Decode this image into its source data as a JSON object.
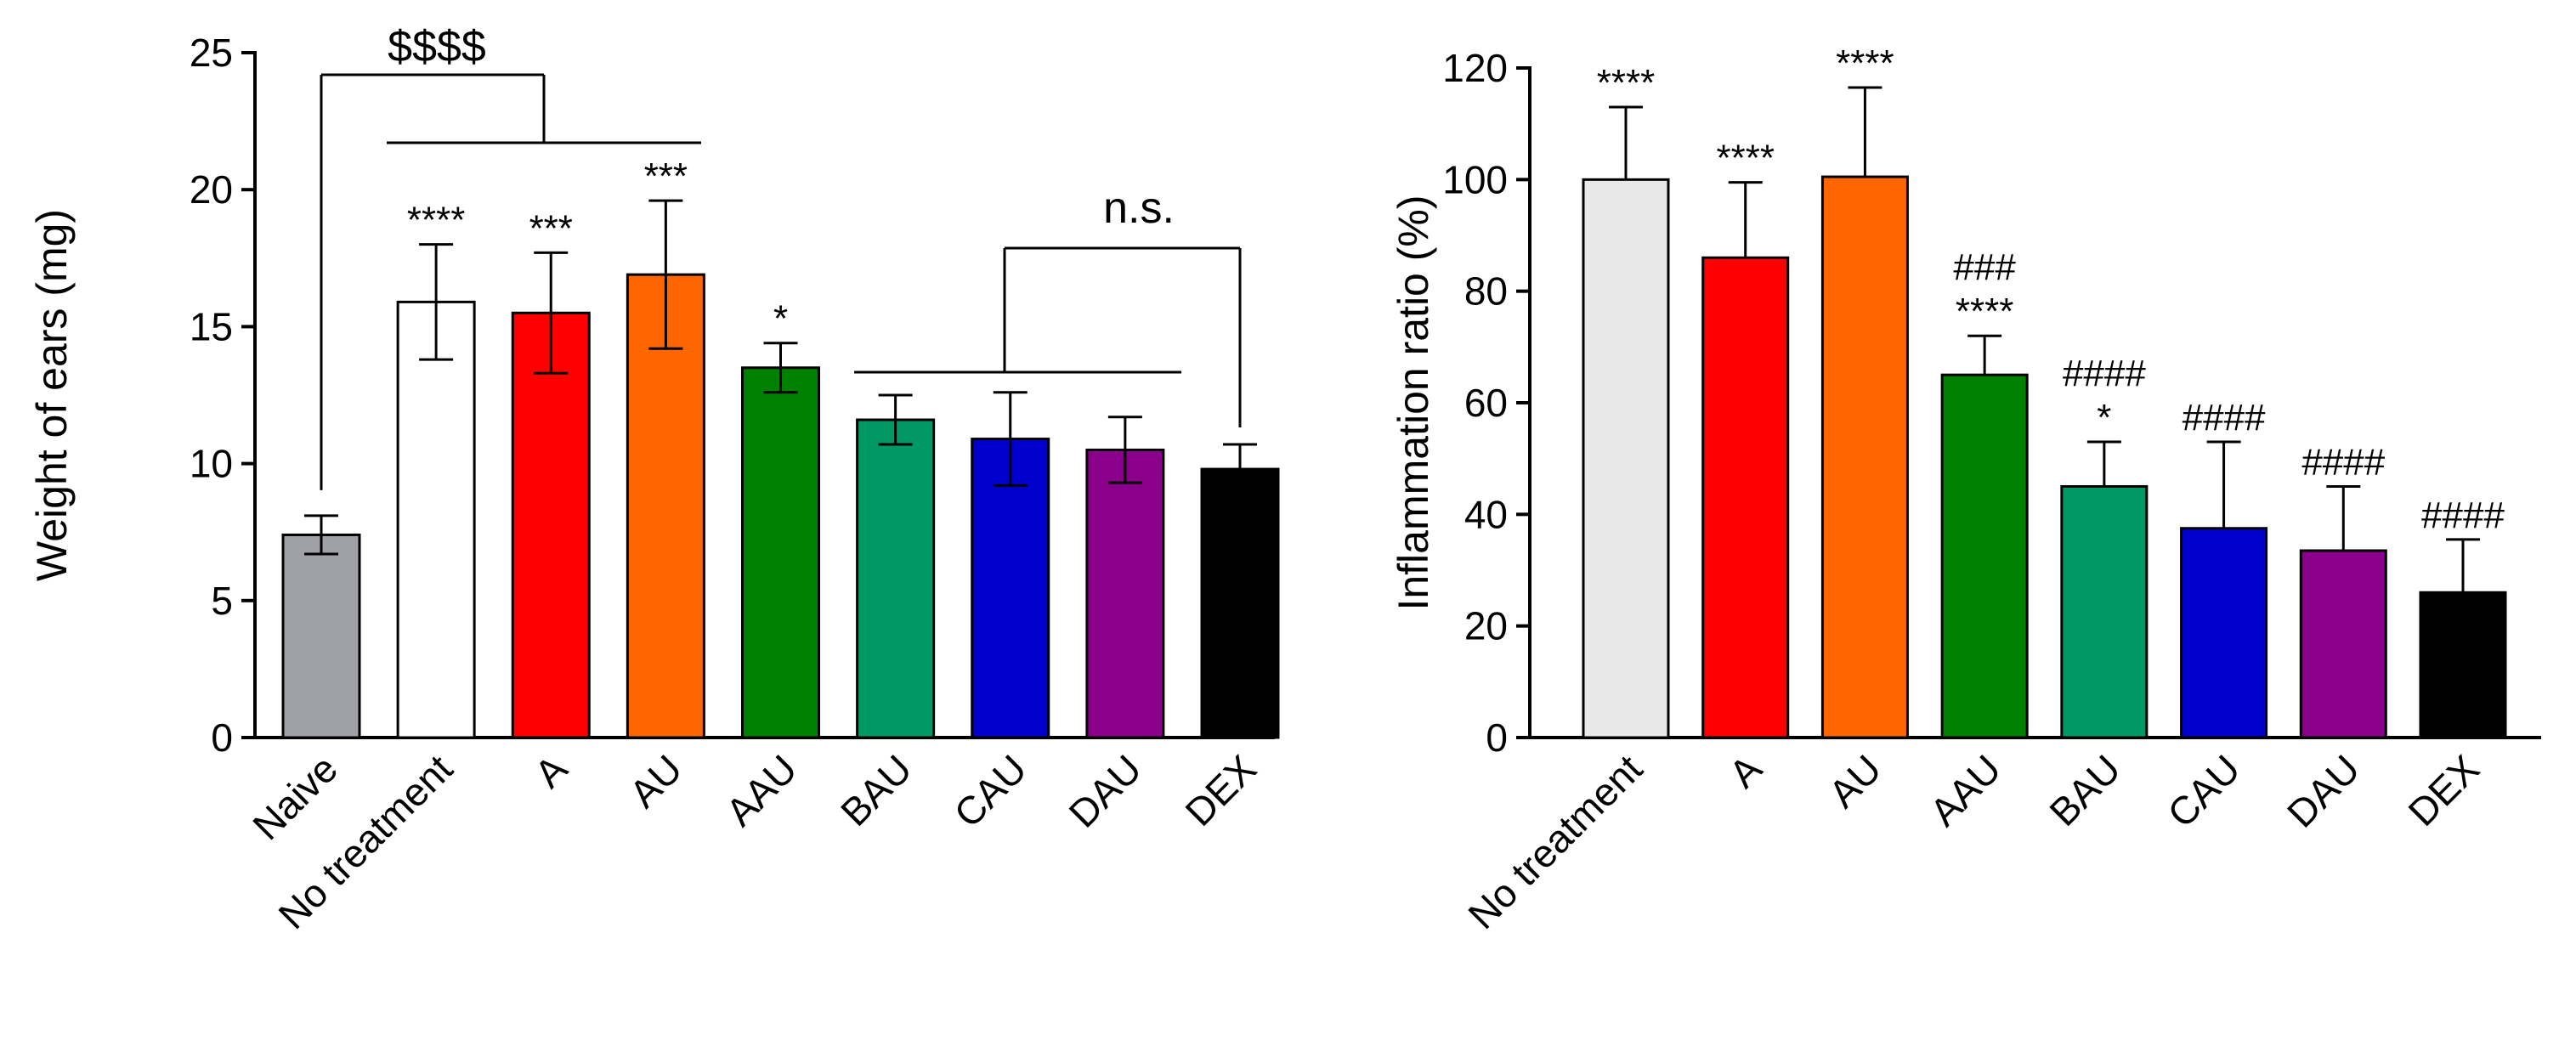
{
  "chart_data": [
    {
      "type": "bar",
      "ylabel": "Weight of ears (mg)",
      "ylim": [
        0,
        25
      ],
      "yticks": [
        0,
        5,
        10,
        15,
        20,
        25
      ],
      "categories": [
        "Naive",
        "No treatment",
        "A",
        "AU",
        "AAU",
        "BAU",
        "CAU",
        "DAU",
        "DEX"
      ],
      "values": [
        7.4,
        15.9,
        15.5,
        16.9,
        13.5,
        11.6,
        10.9,
        10.5,
        9.8
      ],
      "errors": [
        0.7,
        2.1,
        2.2,
        2.7,
        0.9,
        0.9,
        1.7,
        1.2,
        0.9
      ],
      "colors": [
        "#a0a0a8",
        "#ffffff",
        "#ff0000",
        "#ff6600",
        "#008000",
        "#009966",
        "#0000cc",
        "#8b008b",
        "#000000"
      ],
      "annotations": [
        "",
        "****",
        "***",
        "***",
        "*",
        "",
        "",
        "",
        ""
      ],
      "brackets": {
        "naive_vs_treated": "$$$$",
        "treated_vs_dex": "n.s."
      }
    },
    {
      "type": "bar",
      "ylabel": "Inflammation ratio (%)",
      "ylim": [
        0,
        120
      ],
      "yticks": [
        0,
        20,
        40,
        60,
        80,
        100,
        120
      ],
      "categories": [
        "No treatment",
        "A",
        "AU",
        "AAU",
        "BAU",
        "CAU",
        "DAU",
        "DEX"
      ],
      "values": [
        100,
        86,
        100.5,
        65,
        45,
        37.5,
        33.5,
        26
      ],
      "errors": [
        13,
        13.5,
        16,
        7,
        8,
        15.5,
        11.5,
        9.5
      ],
      "colors": [
        "#e8e8e8",
        "#ff0000",
        "#ff6600",
        "#008000",
        "#009966",
        "#0000cc",
        "#8b008b",
        "#000000"
      ],
      "annotations_hash": [
        "",
        "",
        "",
        "###",
        "####",
        "####",
        "####",
        "####"
      ],
      "annotations_star": [
        "****",
        "****",
        "****",
        "****",
        "*",
        "",
        "",
        ""
      ]
    }
  ]
}
